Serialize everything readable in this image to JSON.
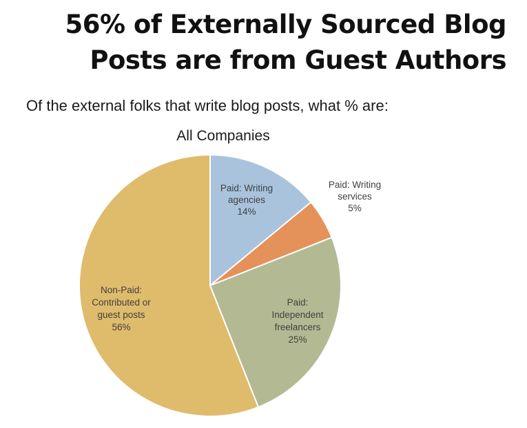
{
  "headline": {
    "line1": "56% of Externally Sourced Blog",
    "line2": "Posts are from Guest Authors"
  },
  "subhead": "Of the external folks that write blog posts, what % are:",
  "chart_data": {
    "type": "pie",
    "title": "All Companies",
    "unit": "%",
    "slices": [
      {
        "label_lines": [
          "Paid: Writing",
          "agencies",
          "14%"
        ],
        "label": "Paid: Writing agencies",
        "value": 14,
        "color": "#a9c3dc"
      },
      {
        "label_lines": [
          "Paid: Writing",
          "services",
          "5%"
        ],
        "label": "Paid: Writing services",
        "value": 5,
        "color": "#e4915a"
      },
      {
        "label_lines": [
          "Paid:",
          "Independent",
          "freelancers",
          "25%"
        ],
        "label": "Paid: Independent freelancers",
        "value": 25,
        "color": "#b3ba93"
      },
      {
        "label_lines": [
          "Non-Paid:",
          "Contributed or",
          "guest posts",
          "56%"
        ],
        "label": "Non-Paid: Contributed or guest posts",
        "value": 56,
        "color": "#dfbb6c"
      }
    ]
  }
}
